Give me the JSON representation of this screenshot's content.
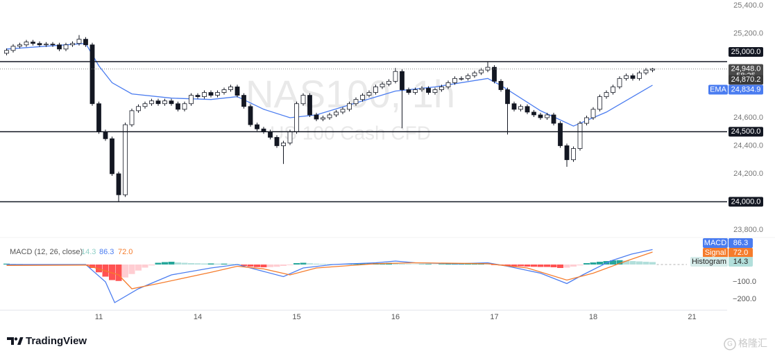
{
  "chart_data": {
    "type": "candlestick",
    "title": "NAS100, 1h",
    "subtitle": "US 100 Cash CFD",
    "brand": "TradingView",
    "watermark": "格隆汇",
    "xlim": [
      0,
      110
    ],
    "xticks": [
      {
        "value": 15,
        "label": "11"
      },
      {
        "value": 30,
        "label": "14"
      },
      {
        "value": 45,
        "label": "15"
      },
      {
        "value": 60,
        "label": "16"
      },
      {
        "value": 75,
        "label": "17"
      },
      {
        "value": 90,
        "label": "18"
      },
      {
        "value": 105,
        "label": "21"
      }
    ],
    "ylim": [
      23750,
      25440
    ],
    "yticks": [
      {
        "value": 23800,
        "label": "23,800.0"
      },
      {
        "value": 24200,
        "label": "24,200.0"
      },
      {
        "value": 24400,
        "label": "24,400.0"
      },
      {
        "value": 24600,
        "label": "24,600.0"
      },
      {
        "value": 25200,
        "label": "25,200.0"
      },
      {
        "value": 25400,
        "label": "25,400.0"
      }
    ],
    "grid": false,
    "levels": [
      {
        "value": 25000,
        "label": "25,000.0"
      },
      {
        "value": 24500,
        "label": "24,500.0"
      },
      {
        "value": 24000,
        "label": "24,000.0"
      }
    ],
    "last": {
      "value": 24948,
      "label": "24,948.0"
    },
    "countdown": "58:25",
    "marker": {
      "value": 24870.2,
      "label": "24,870.2"
    },
    "x": [
      1,
      2,
      3,
      4,
      5,
      6,
      7,
      8,
      9,
      10,
      11,
      12,
      13,
      14,
      15,
      16,
      17,
      18,
      19,
      20,
      21,
      22,
      23,
      24,
      25,
      26,
      27,
      28,
      29,
      30,
      31,
      32,
      33,
      34,
      35,
      36,
      37,
      38,
      39,
      40,
      41,
      42,
      43,
      44,
      45,
      46,
      47,
      48,
      49,
      50,
      51,
      52,
      53,
      54,
      55,
      56,
      57,
      58,
      59,
      60,
      61,
      62,
      63,
      64,
      65,
      66,
      67,
      68,
      69,
      70,
      71,
      72,
      73,
      74,
      75,
      76,
      77,
      78,
      79,
      80,
      81,
      82,
      83,
      84,
      85,
      86,
      87,
      88,
      89,
      90,
      91,
      92,
      93,
      94,
      95,
      96,
      97,
      98,
      99
    ],
    "candles": {
      "up_color": "#ffffff",
      "down_color": "#131722",
      "border_color": "#131722",
      "ohlc": [
        [
          25060,
          25095,
          25045,
          25080
        ],
        [
          25080,
          25125,
          25065,
          25110
        ],
        [
          25110,
          25135,
          25095,
          25120
        ],
        [
          25120,
          25155,
          25105,
          25140
        ],
        [
          25140,
          25155,
          25115,
          25130
        ],
        [
          25130,
          25145,
          25105,
          25120
        ],
        [
          25120,
          25140,
          25105,
          25125
        ],
        [
          25125,
          25140,
          25105,
          25120
        ],
        [
          25120,
          25135,
          25075,
          25090
        ],
        [
          25090,
          25135,
          25075,
          25120
        ],
        [
          25120,
          25145,
          25105,
          25130
        ],
        [
          25130,
          25190,
          25115,
          25160
        ],
        [
          25160,
          25175,
          25105,
          25120
        ],
        [
          25120,
          25135,
          24685,
          24700
        ],
        [
          24700,
          24715,
          24485,
          24500
        ],
        [
          24500,
          24515,
          24435,
          24450
        ],
        [
          24450,
          24465,
          24185,
          24200
        ],
        [
          24200,
          24215,
          24000,
          24050
        ],
        [
          24050,
          24565,
          24035,
          24550
        ],
        [
          24550,
          24665,
          24535,
          24650
        ],
        [
          24650,
          24695,
          24635,
          24680
        ],
        [
          24680,
          24715,
          24665,
          24700
        ],
        [
          24700,
          24735,
          24685,
          24720
        ],
        [
          24720,
          24735,
          24685,
          24700
        ],
        [
          24700,
          24735,
          24685,
          24720
        ],
        [
          24720,
          24735,
          24685,
          24700
        ],
        [
          24700,
          24715,
          24645,
          24660
        ],
        [
          24660,
          24715,
          24645,
          24700
        ],
        [
          24700,
          24775,
          24685,
          24760
        ],
        [
          24760,
          24775,
          24735,
          24750
        ],
        [
          24750,
          24795,
          24735,
          24780
        ],
        [
          24780,
          24795,
          24745,
          24760
        ],
        [
          24760,
          24795,
          24745,
          24780
        ],
        [
          24780,
          24815,
          24765,
          24800
        ],
        [
          24800,
          24835,
          24785,
          24820
        ],
        [
          24820,
          24835,
          24745,
          24760
        ],
        [
          24760,
          24775,
          24665,
          24680
        ],
        [
          24680,
          24695,
          24535,
          24550
        ],
        [
          24550,
          24565,
          24505,
          24520
        ],
        [
          24520,
          24535,
          24485,
          24500
        ],
        [
          24500,
          24515,
          24445,
          24460
        ],
        [
          24460,
          24475,
          24385,
          24400
        ],
        [
          24400,
          24435,
          24270,
          24420
        ],
        [
          24420,
          24515,
          24405,
          24500
        ],
        [
          24500,
          24715,
          24485,
          24700
        ],
        [
          24700,
          24775,
          24685,
          24760
        ],
        [
          24760,
          24775,
          24605,
          24620
        ],
        [
          24620,
          24635,
          24575,
          24590
        ],
        [
          24590,
          24615,
          24575,
          24600
        ],
        [
          24600,
          24635,
          24585,
          24620
        ],
        [
          24620,
          24655,
          24605,
          24640
        ],
        [
          24640,
          24675,
          24625,
          24660
        ],
        [
          24660,
          24715,
          24645,
          24700
        ],
        [
          24700,
          24745,
          24685,
          24730
        ],
        [
          24730,
          24775,
          24715,
          24760
        ],
        [
          24760,
          24795,
          24745,
          24780
        ],
        [
          24780,
          24835,
          24765,
          24820
        ],
        [
          24820,
          24855,
          24805,
          24840
        ],
        [
          24840,
          24875,
          24825,
          24860
        ],
        [
          24860,
          24955,
          24845,
          24930
        ],
        [
          24930,
          24945,
          24525,
          24800
        ],
        [
          24800,
          24815,
          24765,
          24780
        ],
        [
          24780,
          24815,
          24765,
          24800
        ],
        [
          24800,
          24825,
          24785,
          24810
        ],
        [
          24810,
          24825,
          24765,
          24780
        ],
        [
          24780,
          24815,
          24765,
          24800
        ],
        [
          24800,
          24835,
          24785,
          24820
        ],
        [
          24820,
          24865,
          24805,
          24850
        ],
        [
          24850,
          24895,
          24835,
          24880
        ],
        [
          24880,
          24895,
          24865,
          24880
        ],
        [
          24880,
          24915,
          24865,
          24900
        ],
        [
          24900,
          24935,
          24885,
          24920
        ],
        [
          24920,
          24955,
          24905,
          24940
        ],
        [
          24940,
          25000,
          24925,
          24960
        ],
        [
          24960,
          24975,
          24845,
          24860
        ],
        [
          24860,
          24875,
          24785,
          24800
        ],
        [
          24800,
          24815,
          24480,
          24700
        ],
        [
          24700,
          24715,
          24645,
          24660
        ],
        [
          24660,
          24695,
          24645,
          24680
        ],
        [
          24680,
          24695,
          24625,
          24640
        ],
        [
          24640,
          24655,
          24605,
          24620
        ],
        [
          24620,
          24635,
          24585,
          24600
        ],
        [
          24600,
          24635,
          24585,
          24620
        ],
        [
          24620,
          24635,
          24545,
          24560
        ],
        [
          24560,
          24575,
          24385,
          24400
        ],
        [
          24400,
          24415,
          24250,
          24300
        ],
        [
          24300,
          24395,
          24285,
          24380
        ],
        [
          24380,
          24575,
          24365,
          24560
        ],
        [
          24560,
          24615,
          24545,
          24600
        ],
        [
          24600,
          24675,
          24585,
          24660
        ],
        [
          24660,
          24765,
          24645,
          24750
        ],
        [
          24750,
          24795,
          24735,
          24780
        ],
        [
          24780,
          24835,
          24765,
          24820
        ],
        [
          24820,
          24895,
          24805,
          24880
        ],
        [
          24880,
          24915,
          24865,
          24900
        ],
        [
          24900,
          24915,
          24865,
          24880
        ],
        [
          24880,
          24935,
          24865,
          24920
        ],
        [
          24920,
          24955,
          24905,
          24940
        ],
        [
          24940,
          24955,
          24925,
          24948
        ]
      ]
    },
    "ema": {
      "name": "EMA",
      "color": "#4a7cf0",
      "x": [
        1,
        13,
        15,
        17,
        20,
        26,
        32,
        36,
        40,
        44,
        48,
        55,
        60,
        66,
        74,
        76,
        82,
        87,
        92,
        99
      ],
      "values": [
        25090,
        25130,
        24970,
        24850,
        24770,
        24740,
        24730,
        24750,
        24660,
        24600,
        24620,
        24720,
        24790,
        24820,
        24880,
        24830,
        24650,
        24540,
        24640,
        24832
      ],
      "last": {
        "value": 24834.9,
        "label": "24,834.9"
      }
    },
    "macd": {
      "title": "MACD (12, 26, close)",
      "ylim": [
        -264,
        148
      ],
      "yticks": [
        {
          "value": -100,
          "label": "−100.0"
        },
        {
          "value": -200,
          "label": "−200.0"
        }
      ],
      "histogram": {
        "name": "Histogram",
        "last": 14.3,
        "colors": {
          "grow_up": "#26a69a",
          "fall_up": "#b2dfdb",
          "fall_down": "#ff5252",
          "grow_down": "#ffcdd2"
        },
        "values": [
          5,
          4,
          3,
          2,
          -2,
          -3,
          -4,
          -5,
          -6,
          -5,
          -4,
          -3,
          -4,
          -20,
          -45,
          -70,
          -90,
          -95,
          -75,
          -55,
          -35,
          -18,
          -5,
          10,
          14,
          16,
          12,
          10,
          8,
          7,
          6,
          6,
          5,
          5,
          4,
          3,
          -8,
          -12,
          -15,
          -16,
          -15,
          -13,
          -8,
          -4,
          8,
          10,
          7,
          5,
          4,
          3,
          2,
          2,
          4,
          5,
          6,
          7,
          8,
          8,
          9,
          6,
          4,
          3,
          2,
          2,
          3,
          2,
          3,
          4,
          4,
          5,
          5,
          6,
          6,
          5,
          -3,
          -5,
          -8,
          -10,
          -10,
          -12,
          -13,
          -14,
          -14,
          -16,
          -20,
          -18,
          -12,
          -5,
          8,
          12,
          16,
          20,
          24,
          25,
          22,
          20,
          18,
          16,
          14.3
        ]
      },
      "macd": {
        "name": "MACD",
        "color": "#4a7cf0",
        "last": 86.3,
        "x": [
          1,
          13,
          16,
          17.4,
          21,
          26,
          32,
          36,
          40,
          43,
          46,
          50.5,
          57,
          60,
          63,
          69.5,
          74,
          77,
          82,
          86,
          88.4,
          92.6,
          95.8,
          99
        ],
        "values": [
          0,
          0,
          -100,
          -220,
          -140,
          -60,
          -20,
          0,
          -40,
          -70,
          -20,
          0,
          10,
          20,
          10,
          5,
          10,
          -10,
          -50,
          -110,
          -60,
          20,
          60,
          86.3
        ]
      },
      "signal": {
        "name": "Signal",
        "color": "#f57c2c",
        "last": {
          "value": 72,
          "label": "72.0"
        },
        "x": [
          1,
          13,
          18,
          20,
          24,
          32,
          36,
          40,
          44,
          48,
          57,
          63,
          74,
          80,
          86,
          90,
          95,
          99
        ],
        "values": [
          -5,
          -3,
          -60,
          -140,
          -110,
          -45,
          -10,
          -25,
          -60,
          -20,
          5,
          10,
          5,
          -20,
          -90,
          -50,
          20,
          72
        ]
      }
    }
  }
}
